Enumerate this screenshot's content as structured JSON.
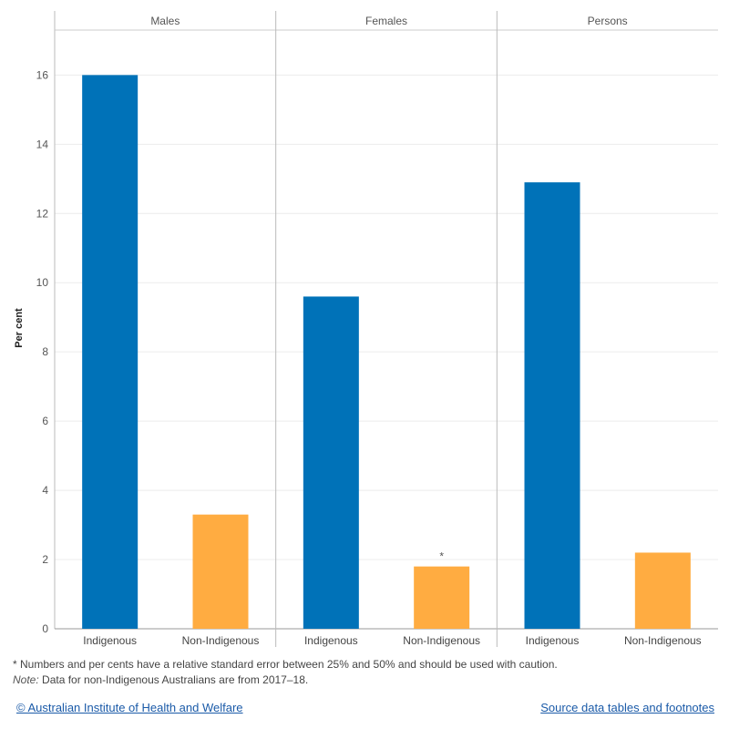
{
  "chart_data": {
    "type": "bar",
    "ylabel": "Per cent",
    "ylim": [
      0,
      17.3
    ],
    "yticks": [
      0,
      2,
      4,
      6,
      8,
      10,
      12,
      14,
      16
    ],
    "panels": [
      {
        "name": "Males",
        "bars": [
          {
            "category": "Indigenous",
            "value": 16.0,
            "color": "#0072b8",
            "marker": ""
          },
          {
            "category": "Non-Indigenous",
            "value": 3.3,
            "color": "#ffac41",
            "marker": ""
          }
        ]
      },
      {
        "name": "Females",
        "bars": [
          {
            "category": "Indigenous",
            "value": 9.6,
            "color": "#0072b8",
            "marker": ""
          },
          {
            "category": "Non-Indigenous",
            "value": 1.8,
            "color": "#ffac41",
            "marker": "*"
          }
        ]
      },
      {
        "name": "Persons",
        "bars": [
          {
            "category": "Indigenous",
            "value": 12.9,
            "color": "#0072b8",
            "marker": ""
          },
          {
            "category": "Non-Indigenous",
            "value": 2.2,
            "color": "#ffac41",
            "marker": ""
          }
        ]
      }
    ],
    "grid": true
  },
  "footnotes": {
    "line1": "* Numbers and per cents have a relative standard error between 25% and 50% and should be used with caution.",
    "note_label": "Note:",
    "line2": " Data for non-Indigenous Australians are from 2017–18."
  },
  "links": {
    "copyright": "© Australian Institute of Health and Welfare",
    "source": "Source data tables and footnotes"
  }
}
